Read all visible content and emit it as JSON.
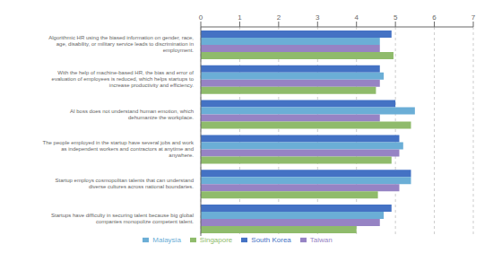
{
  "chart_data": {
    "type": "bar",
    "orientation": "horizontal",
    "categories": [
      "Algorithmic HR using the biased information on gender, race,\nage, disability, or military service leads to discrimination in\nemployment.",
      "With the help of machine-based HR, the bias and error of\nevaluation of employees is reduced, which helps startups to\nincrease productivity and efficiency.",
      "AI boss does not understand human emotion, which\ndehumanize the workplace.",
      "The people employed in the startup have several jobs and work\nas independent workers and contractors at anytime and\nanywhere.",
      "Startup employs cosmopolitan talents that can understand\ndiverse cultures across national boundaries.",
      "Startups have difficulty in securing talent because big global\ncompanies monopolize competent talent."
    ],
    "series": [
      {
        "name": "South Korea",
        "color": "#4472C4",
        "values": [
          4.9,
          4.6,
          5.0,
          5.1,
          5.4,
          4.9
        ]
      },
      {
        "name": "Malaysia",
        "color": "#6BAED6",
        "values": [
          4.6,
          4.7,
          5.5,
          5.2,
          5.4,
          4.7
        ]
      },
      {
        "name": "Taiwan",
        "color": "#9683C4",
        "values": [
          4.6,
          4.6,
          4.6,
          5.1,
          5.1,
          4.6
        ]
      },
      {
        "name": "Singapore",
        "color": "#8FBB6B",
        "values": [
          4.95,
          4.5,
          5.4,
          4.9,
          4.55,
          4.0
        ]
      }
    ],
    "xlim": [
      0,
      7
    ],
    "xticks": [
      0,
      1,
      2,
      3,
      4,
      5,
      6,
      7
    ],
    "grid": true,
    "legend": "bottom"
  }
}
